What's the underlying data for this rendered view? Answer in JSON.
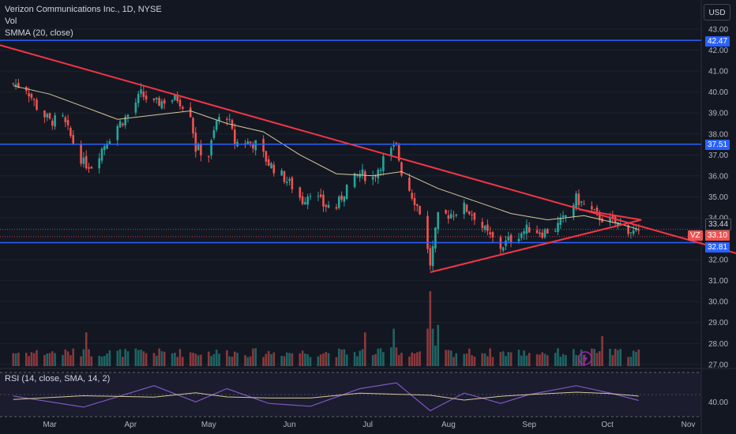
{
  "header": {
    "title": "Verizon Communications Inc., 1D, NYSE",
    "vol_label": "Vol",
    "smma_label": "SMMA (20, close)",
    "rsi_label": "RSI (14, close, SMA, 14, 2)",
    "currency_button": "USD"
  },
  "price_tags": {
    "hline_top": "42.47",
    "hline_mid": "37.51",
    "smma_value": "33.44",
    "symbol": "VZ",
    "last_price": "33.10",
    "hline_low": "32.81"
  },
  "colors": {
    "background": "#131722",
    "up": "#26a69a",
    "down": "#ef5350",
    "hline": "#2962ff",
    "trendline": "#f23645",
    "smma": "#d7c79a",
    "rsi": "#7e57c2",
    "rsi_ma": "#d7c79a"
  },
  "chart_data": {
    "type": "candlestick",
    "title": "Verizon Communications Inc., 1D, NYSE",
    "x_ticks": [
      "Mar",
      "Apr",
      "May",
      "Jun",
      "Jul",
      "Aug",
      "Sep",
      "Oct",
      "Nov"
    ],
    "y_ticks": [
      "43.00",
      "42.00",
      "41.00",
      "40.00",
      "39.00",
      "38.00",
      "37.00",
      "36.00",
      "35.00",
      "34.00",
      "32.00",
      "31.00",
      "30.00",
      "29.00",
      "28.00",
      "27.00"
    ],
    "ylim": [
      26.9,
      43.6
    ],
    "rsi_ticks": [
      "40.00"
    ],
    "close_path": [
      {
        "d": "2023-02-15",
        "c": 40.4
      },
      {
        "d": "2023-02-20",
        "c": 40.2
      },
      {
        "d": "2023-02-24",
        "c": 39.3
      },
      {
        "d": "2023-03-01",
        "c": 38.6
      },
      {
        "d": "2023-03-06",
        "c": 38.7
      },
      {
        "d": "2023-03-10",
        "c": 37.6
      },
      {
        "d": "2023-03-14",
        "c": 36.6
      },
      {
        "d": "2023-03-17",
        "c": 36.5
      },
      {
        "d": "2023-03-22",
        "c": 37.5
      },
      {
        "d": "2023-03-27",
        "c": 38.4
      },
      {
        "d": "2023-03-31",
        "c": 38.9
      },
      {
        "d": "2023-04-05",
        "c": 39.9
      },
      {
        "d": "2023-04-10",
        "c": 39.4
      },
      {
        "d": "2023-04-14",
        "c": 39.6
      },
      {
        "d": "2023-04-19",
        "c": 39.7
      },
      {
        "d": "2023-04-24",
        "c": 39.0
      },
      {
        "d": "2023-04-26",
        "c": 37.3
      },
      {
        "d": "2023-05-01",
        "c": 37.0
      },
      {
        "d": "2023-05-04",
        "c": 38.6
      },
      {
        "d": "2023-05-08",
        "c": 38.9
      },
      {
        "d": "2023-05-11",
        "c": 37.6
      },
      {
        "d": "2023-05-16",
        "c": 37.6
      },
      {
        "d": "2023-05-19",
        "c": 37.5
      },
      {
        "d": "2023-05-24",
        "c": 36.6
      },
      {
        "d": "2023-05-30",
        "c": 35.9
      },
      {
        "d": "2023-06-02",
        "c": 35.5
      },
      {
        "d": "2023-06-06",
        "c": 34.8
      },
      {
        "d": "2023-06-09",
        "c": 35.3
      },
      {
        "d": "2023-06-14",
        "c": 34.6
      },
      {
        "d": "2023-06-19",
        "c": 34.5
      },
      {
        "d": "2023-06-23",
        "c": 35.5
      },
      {
        "d": "2023-06-28",
        "c": 36.1
      },
      {
        "d": "2023-07-03",
        "c": 35.9
      },
      {
        "d": "2023-07-07",
        "c": 36.8
      },
      {
        "d": "2023-07-12",
        "c": 37.4
      },
      {
        "d": "2023-07-14",
        "c": 36.2
      },
      {
        "d": "2023-07-18",
        "c": 35.1
      },
      {
        "d": "2023-07-21",
        "c": 34.3
      },
      {
        "d": "2023-07-25",
        "c": 31.8
      },
      {
        "d": "2023-07-28",
        "c": 34.0
      },
      {
        "d": "2023-08-02",
        "c": 34.2
      },
      {
        "d": "2023-08-07",
        "c": 34.5
      },
      {
        "d": "2023-08-11",
        "c": 34.1
      },
      {
        "d": "2023-08-16",
        "c": 33.2
      },
      {
        "d": "2023-08-21",
        "c": 32.6
      },
      {
        "d": "2023-08-24",
        "c": 32.9
      },
      {
        "d": "2023-08-29",
        "c": 33.3
      },
      {
        "d": "2023-09-01",
        "c": 33.5
      },
      {
        "d": "2023-09-06",
        "c": 33.3
      },
      {
        "d": "2023-09-11",
        "c": 33.5
      },
      {
        "d": "2023-09-14",
        "c": 33.9
      },
      {
        "d": "2023-09-19",
        "c": 34.9
      },
      {
        "d": "2023-09-22",
        "c": 34.6
      },
      {
        "d": "2023-09-27",
        "c": 34.1
      },
      {
        "d": "2023-10-02",
        "c": 33.8
      },
      {
        "d": "2023-10-05",
        "c": 33.7
      },
      {
        "d": "2023-10-10",
        "c": 33.4
      },
      {
        "d": "2023-10-13",
        "c": 33.1
      }
    ],
    "smma_path": [
      {
        "d": "2023-02-15",
        "v": 40.3
      },
      {
        "d": "2023-03-01",
        "v": 39.9
      },
      {
        "d": "2023-03-14",
        "v": 39.3
      },
      {
        "d": "2023-03-27",
        "v": 38.7
      },
      {
        "d": "2023-04-10",
        "v": 38.9
      },
      {
        "d": "2023-04-24",
        "v": 39.1
      },
      {
        "d": "2023-05-08",
        "v": 38.5
      },
      {
        "d": "2023-05-22",
        "v": 38.1
      },
      {
        "d": "2023-06-05",
        "v": 37.0
      },
      {
        "d": "2023-06-19",
        "v": 36.1
      },
      {
        "d": "2023-07-03",
        "v": 36.0
      },
      {
        "d": "2023-07-14",
        "v": 36.2
      },
      {
        "d": "2023-07-28",
        "v": 35.4
      },
      {
        "d": "2023-08-11",
        "v": 34.8
      },
      {
        "d": "2023-08-25",
        "v": 34.2
      },
      {
        "d": "2023-09-08",
        "v": 33.9
      },
      {
        "d": "2023-09-22",
        "v": 34.1
      },
      {
        "d": "2023-10-06",
        "v": 33.7
      },
      {
        "d": "2023-10-13",
        "v": 33.44
      }
    ],
    "horizontal_lines": [
      42.47,
      37.51,
      32.81
    ],
    "trendlines": [
      {
        "from": {
          "d": "2023-01-25",
          "p": 42.8
        },
        "to": {
          "d": "2023-11-28",
          "p": 32.0
        }
      },
      {
        "from": {
          "d": "2023-07-25",
          "p": 31.4
        },
        "to": {
          "d": "2023-10-14",
          "p": 33.9
        }
      },
      {
        "from": {
          "d": "2023-09-20",
          "p": 34.4
        },
        "to": {
          "d": "2023-10-14",
          "p": 33.9
        }
      }
    ],
    "volume_spikes": [
      {
        "d": "2023-03-15",
        "rel": 0.45
      },
      {
        "d": "2023-06-30",
        "rel": 0.45
      },
      {
        "d": "2023-07-11",
        "rel": 0.5
      },
      {
        "d": "2023-07-25",
        "rel": 1.0
      },
      {
        "d": "2023-07-28",
        "rel": 0.55
      },
      {
        "d": "2023-09-29",
        "rel": 0.4
      }
    ],
    "rsi_path": [
      {
        "d": "2023-02-15",
        "v": 48
      },
      {
        "d": "2023-03-14",
        "v": 33
      },
      {
        "d": "2023-04-10",
        "v": 62
      },
      {
        "d": "2023-04-26",
        "v": 40
      },
      {
        "d": "2023-05-08",
        "v": 58
      },
      {
        "d": "2023-05-24",
        "v": 38
      },
      {
        "d": "2023-06-09",
        "v": 34
      },
      {
        "d": "2023-06-28",
        "v": 58
      },
      {
        "d": "2023-07-12",
        "v": 66
      },
      {
        "d": "2023-07-25",
        "v": 28
      },
      {
        "d": "2023-08-07",
        "v": 52
      },
      {
        "d": "2023-08-21",
        "v": 38
      },
      {
        "d": "2023-09-01",
        "v": 50
      },
      {
        "d": "2023-09-19",
        "v": 62
      },
      {
        "d": "2023-10-02",
        "v": 52
      },
      {
        "d": "2023-10-13",
        "v": 42
      }
    ]
  }
}
